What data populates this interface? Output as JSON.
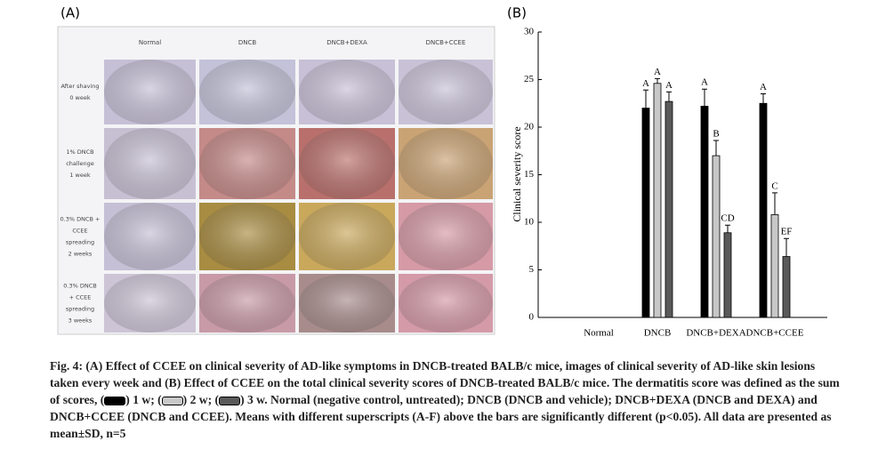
{
  "panel_a": {
    "label": "(A)",
    "columns": [
      "Normal",
      "DNCB",
      "DNCB+DEXA",
      "DNCB+CCEE"
    ],
    "rows": [
      [
        "After shaving",
        "0 week"
      ],
      [
        "1% DNCB",
        "challenge",
        "1 week"
      ],
      [
        "0.3% DNCB +",
        "CCEE",
        "spreading",
        "2 weeks"
      ],
      [
        "0.3% DNCB",
        "+ CCEE",
        "spreading",
        "3 weeks"
      ]
    ]
  },
  "chart_data": {
    "type": "bar",
    "panel_label": "(B)",
    "y_label": "Clinical severity score",
    "categories": [
      "Normal",
      "DNCB",
      "DNCB+DEXA",
      "DNCB+CCEE"
    ],
    "ylim": [
      0,
      30
    ],
    "yticks": [
      0,
      5,
      10,
      15,
      20,
      25,
      30
    ],
    "series": [
      {
        "name": "1 w",
        "color": "#000000",
        "values": [
          0,
          22,
          22.2,
          22.5
        ],
        "errors": [
          0,
          1.9,
          1.8,
          1.0
        ],
        "letters": [
          null,
          "A",
          "A",
          "A"
        ]
      },
      {
        "name": "2 w",
        "color": "#c8c8c8",
        "values": [
          0,
          24.6,
          17,
          10.8
        ],
        "errors": [
          0,
          0.5,
          1.6,
          2.3
        ],
        "letters": [
          null,
          "A",
          "B",
          "C"
        ]
      },
      {
        "name": "3 w",
        "color": "#5a5a5a",
        "values": [
          0,
          22.7,
          8.9,
          6.4
        ],
        "errors": [
          0,
          1.0,
          0.8,
          1.9
        ],
        "letters": [
          null,
          "A",
          "CD",
          "EF"
        ]
      }
    ]
  },
  "caption": [
    "Fig. 4: (A) Effect of CCEE on clinical severity of AD-like symptoms in DNCB-treated BALB/c mice, images of clinical severity of AD-like skin lesions taken every week and (B) Effect of CCEE on the total clinical severity scores of DNCB-treated BALB/c mice. The dermatitis score was defined as the sum of scores, (",
    ") 1 w; (",
    ") 2 w; (",
    ") 3 w. Normal (negative control, untreated); DNCB (DNCB and vehicle); DNCB+DEXA (DNCB and DEXA) and DNCB+CCEE (DNCB and CCEE). Means with different superscripts (A-F) above the bars are significantly different (p<0.05). All data are presented as mean±SD, n=5"
  ]
}
